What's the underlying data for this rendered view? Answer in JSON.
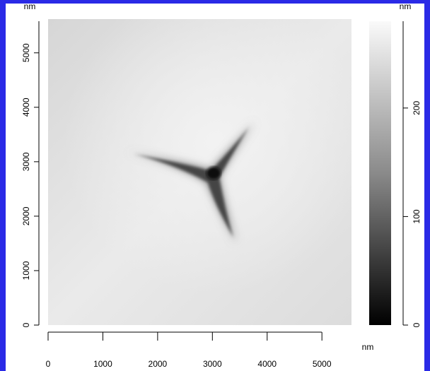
{
  "chart_data": {
    "type": "image",
    "x_label": "nm",
    "y_label": "nm",
    "xlim": [
      0,
      5540
    ],
    "xticks": [
      0,
      1000,
      2000,
      3000,
      4000,
      5000
    ],
    "ylim": [
      0,
      5620
    ],
    "yticks": [
      0,
      1000,
      2000,
      3000,
      4000,
      5000
    ],
    "colorbar": {
      "label": "nm",
      "lim": [
        0,
        280
      ],
      "ticks": [
        0,
        100,
        200
      ]
    }
  }
}
